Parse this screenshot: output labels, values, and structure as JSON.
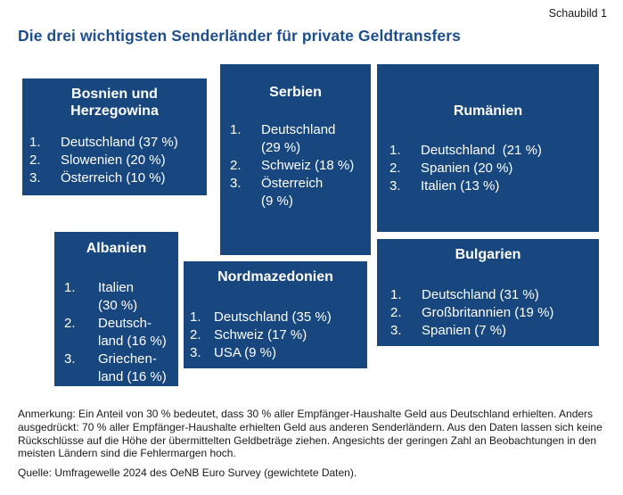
{
  "figure_label": "Schaubild 1",
  "title": "Die drei wichtigsten Senderländer für private Geldtransfers",
  "colors": {
    "box_background": "#17477e",
    "box_text": "#ffffff",
    "title_text": "#1e4e8c",
    "note_text": "#1a1a1a",
    "page_background": "#ffffff"
  },
  "boxes": [
    {
      "title": "Bosnien und\nHerzegowina",
      "items": [
        {
          "n": "1.",
          "text": "Deutschland (37 %)"
        },
        {
          "n": "2.",
          "text": "Slowenien (20 %)"
        },
        {
          "n": "3.",
          "text": "Österreich (10 %)"
        }
      ]
    },
    {
      "title": "Serbien",
      "items": [
        {
          "n": "1.",
          "text": "Deutschland\n(29 %)"
        },
        {
          "n": "2.",
          "text": "Schweiz (18 %)"
        },
        {
          "n": "3.",
          "text": "Österreich\n(9 %)"
        }
      ]
    },
    {
      "title": "Rumänien",
      "items": [
        {
          "n": "1.",
          "text": "Deutschland  (21 %)"
        },
        {
          "n": "2.",
          "text": "Spanien (20 %)"
        },
        {
          "n": "3.",
          "text": "Italien (13 %)"
        }
      ]
    },
    {
      "title": "Albanien",
      "items": [
        {
          "n": "1.",
          "text": "Italien\n(30 %)"
        },
        {
          "n": "2.",
          "text": "Deutsch-\nland (16 %)"
        },
        {
          "n": "3.",
          "text": "Griechen-\nland (16 %)"
        }
      ]
    },
    {
      "title": "Nordmazedonien",
      "items": [
        {
          "n": "1.",
          "text": "Deutschland (35 %)"
        },
        {
          "n": "2.",
          "text": "Schweiz (17 %)"
        },
        {
          "n": "3.",
          "text": "USA (9 %)"
        }
      ]
    },
    {
      "title": "Bulgarien",
      "items": [
        {
          "n": "1.",
          "text": "Deutschland (31 %)"
        },
        {
          "n": "2.",
          "text": "Großbritannien (19 %)"
        },
        {
          "n": "3.",
          "text": "Spanien (7 %)"
        }
      ]
    }
  ],
  "note": "Anmerkung: Ein Anteil von 30 % bedeutet, dass 30 % aller Empfänger-Haushalte Geld aus Deutschland erhielten. Anders ausgedrückt: 70 % aller Empfänger-Haushalte erhielten Geld aus anderen Senderländern. Aus den Daten lassen sich keine Rückschlüsse auf die Höhe der übermittelten Geldbeträge ziehen. Angesichts der geringen Zahl an Beobachtungen in den meisten Ländern sind die Fehlermargen hoch.",
  "source": "Quelle: Umfragewelle 2024 des OeNB Euro Survey (gewichtete Daten).",
  "chart_data": {
    "type": "table",
    "title": "Die drei wichtigsten Senderländer für private Geldtransfers",
    "figure_label": "Schaubild 1",
    "value_unit": "%",
    "groups": [
      {
        "recipient_country": "Bosnien und Herzegowina",
        "top_senders": [
          {
            "rank": 1,
            "country": "Deutschland",
            "share_pct": 37
          },
          {
            "rank": 2,
            "country": "Slowenien",
            "share_pct": 20
          },
          {
            "rank": 3,
            "country": "Österreich",
            "share_pct": 10
          }
        ]
      },
      {
        "recipient_country": "Serbien",
        "top_senders": [
          {
            "rank": 1,
            "country": "Deutschland",
            "share_pct": 29
          },
          {
            "rank": 2,
            "country": "Schweiz",
            "share_pct": 18
          },
          {
            "rank": 3,
            "country": "Österreich",
            "share_pct": 9
          }
        ]
      },
      {
        "recipient_country": "Rumänien",
        "top_senders": [
          {
            "rank": 1,
            "country": "Deutschland",
            "share_pct": 21
          },
          {
            "rank": 2,
            "country": "Spanien",
            "share_pct": 20
          },
          {
            "rank": 3,
            "country": "Italien",
            "share_pct": 13
          }
        ]
      },
      {
        "recipient_country": "Albanien",
        "top_senders": [
          {
            "rank": 1,
            "country": "Italien",
            "share_pct": 30
          },
          {
            "rank": 2,
            "country": "Deutschland",
            "share_pct": 16
          },
          {
            "rank": 3,
            "country": "Griechenland",
            "share_pct": 16
          }
        ]
      },
      {
        "recipient_country": "Nordmazedonien",
        "top_senders": [
          {
            "rank": 1,
            "country": "Deutschland",
            "share_pct": 35
          },
          {
            "rank": 2,
            "country": "Schweiz",
            "share_pct": 17
          },
          {
            "rank": 3,
            "country": "USA",
            "share_pct": 9
          }
        ]
      },
      {
        "recipient_country": "Bulgarien",
        "top_senders": [
          {
            "rank": 1,
            "country": "Deutschland",
            "share_pct": 31
          },
          {
            "rank": 2,
            "country": "Großbritannien",
            "share_pct": 19
          },
          {
            "rank": 3,
            "country": "Spanien",
            "share_pct": 7
          }
        ]
      }
    ],
    "source": "Umfragewelle 2024 des OeNB Euro Survey (gewichtete Daten)"
  }
}
